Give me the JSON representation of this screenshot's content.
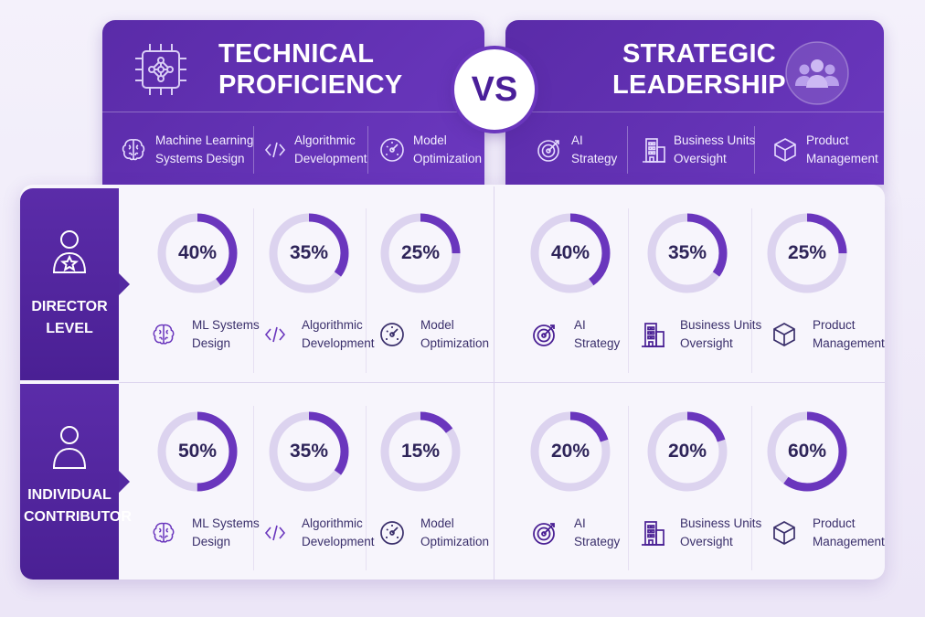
{
  "left_header": {
    "title_line1": "TECHNICAL",
    "title_line2": "PROFICIENCY",
    "icon": "cpu-network-icon",
    "items": [
      {
        "line1": "Machine Learning",
        "line2": "Systems Design",
        "icon": "brain-icon"
      },
      {
        "line1": "Algorithmic",
        "line2": "Development",
        "icon": "code-icon"
      },
      {
        "line1": "Model",
        "line2": "Optimization",
        "icon": "gauge-icon"
      }
    ]
  },
  "vs_label": "VS",
  "right_header": {
    "title_line1": "STRATEGIC",
    "title_line2": "LEADERSHIP",
    "icon": "team-icon",
    "items": [
      {
        "line1": "AI",
        "line2": "Strategy",
        "icon": "target-icon"
      },
      {
        "line1": "Business Units",
        "line2": "Oversight",
        "icon": "building-icon"
      },
      {
        "line1": "Product",
        "line2": "Management",
        "icon": "cube-icon"
      }
    ]
  },
  "rows": [
    {
      "label_line1": "DIRECTOR",
      "label_line2": "LEVEL",
      "icon": "user-star-icon",
      "cells": [
        {
          "value": "40%",
          "fraction": 0.4,
          "line1": "ML Systems",
          "line2": "Design",
          "icon": "brain-icon"
        },
        {
          "value": "35%",
          "fraction": 0.35,
          "line1": "Algorithmic",
          "line2": "Development",
          "icon": "code-icon"
        },
        {
          "value": "25%",
          "fraction": 0.25,
          "line1": "Model",
          "line2": "Optimization",
          "icon": "gauge-icon"
        },
        {
          "value": "40%",
          "fraction": 0.4,
          "line1": "AI",
          "line2": "Strategy",
          "icon": "target-icon"
        },
        {
          "value": "35%",
          "fraction": 0.35,
          "line1": "Business Units",
          "line2": "Oversight",
          "icon": "building-icon"
        },
        {
          "value": "25%",
          "fraction": 0.25,
          "line1": "Product",
          "line2": "Management",
          "icon": "cube-icon"
        }
      ]
    },
    {
      "label_line1": "INDIVIDUAL",
      "label_line2": "CONTRIBUTOR",
      "icon": "user-icon",
      "cells": [
        {
          "value": "50%",
          "fraction": 0.5,
          "line1": "ML Systems",
          "line2": "Design",
          "icon": "brain-icon"
        },
        {
          "value": "35%",
          "fraction": 0.35,
          "line1": "Algorithmic",
          "line2": "Development",
          "icon": "code-icon"
        },
        {
          "value": "15%",
          "fraction": 0.15,
          "line1": "Model",
          "line2": "Optimization",
          "icon": "gauge-icon"
        },
        {
          "value": "20%",
          "fraction": 0.2,
          "line1": "AI",
          "line2": "Strategy",
          "icon": "target-icon"
        },
        {
          "value": "20%",
          "fraction": 0.2,
          "line1": "Business Units",
          "line2": "Oversight",
          "icon": "building-icon"
        },
        {
          "value": "60%",
          "fraction": 0.6,
          "line1": "Product",
          "line2": "Management",
          "icon": "cube-icon"
        }
      ]
    }
  ],
  "colors": {
    "accent": "#6a36bd",
    "ring_track": "#dcd3ef",
    "ring_fill": "#6a36bd",
    "header_bg": "#5a2ba8"
  }
}
